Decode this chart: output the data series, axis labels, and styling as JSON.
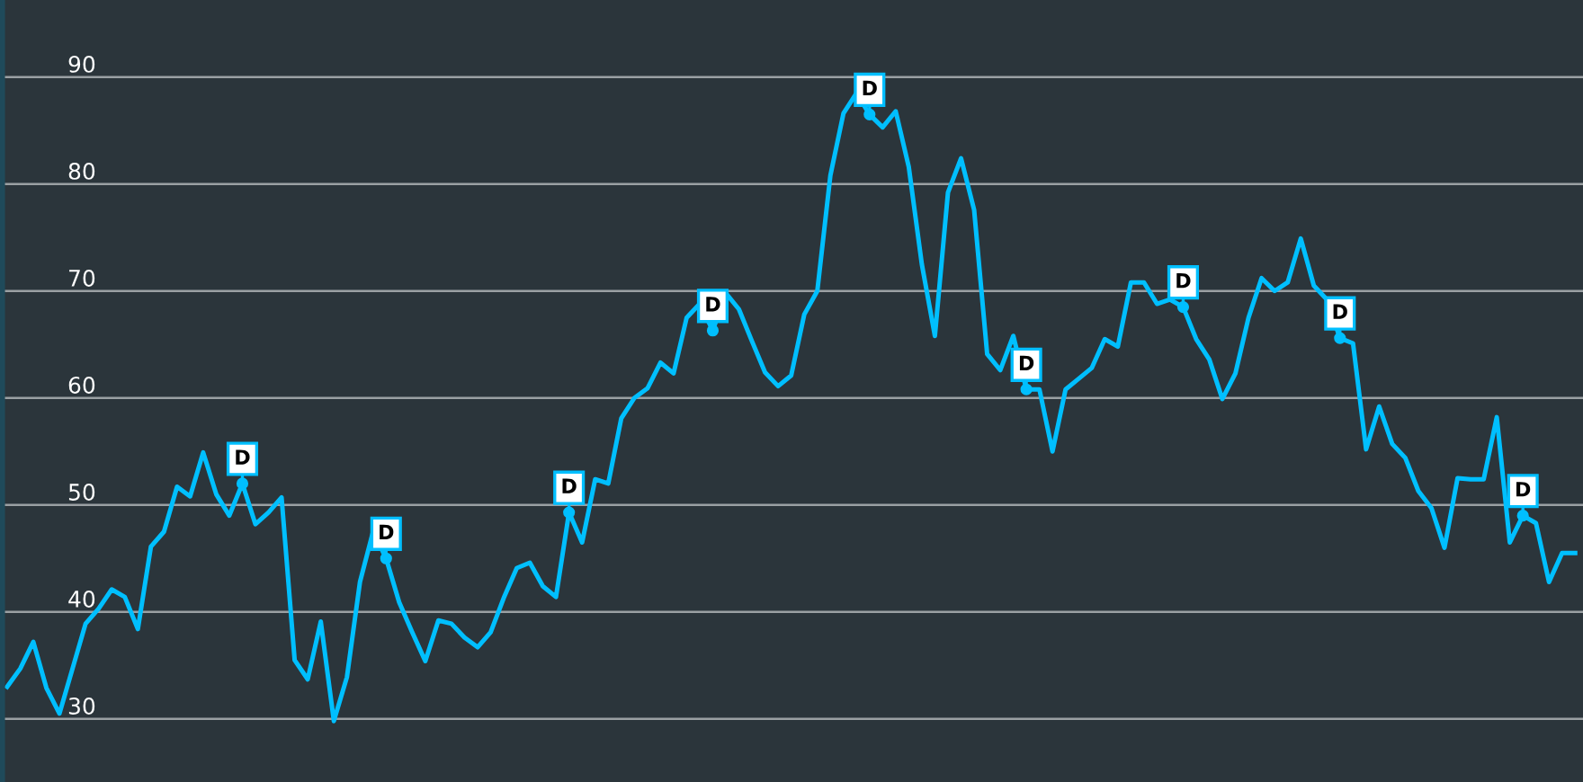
{
  "chart_data": {
    "type": "line",
    "categories": [
      null,
      null,
      null,
      null,
      null,
      null,
      null,
      null,
      null,
      null,
      null,
      null,
      null,
      null,
      null,
      null,
      null,
      null,
      null,
      null,
      null,
      null,
      null,
      null,
      null,
      null,
      null,
      null,
      null,
      null,
      null,
      null,
      null,
      null,
      null,
      null,
      null,
      null,
      null,
      null,
      null,
      null,
      null,
      null,
      null,
      null,
      null,
      null,
      null,
      null,
      null,
      null,
      null,
      null,
      null,
      null,
      null,
      null,
      null,
      null,
      null,
      null,
      null,
      null,
      null,
      null,
      null,
      null,
      null,
      null,
      null,
      null,
      null,
      null,
      null,
      null,
      null,
      null,
      null,
      null,
      null,
      null,
      null,
      null,
      null,
      null,
      null,
      null,
      null,
      null,
      null,
      null,
      null,
      null,
      null,
      null,
      null,
      null,
      null,
      null,
      null,
      null,
      null,
      null,
      null,
      null,
      null,
      null,
      null,
      null,
      null,
      null,
      null,
      null,
      null,
      null,
      null,
      null,
      null,
      null,
      null
    ],
    "series": [
      {
        "color": "#00bfff",
        "values": [
          33.0,
          34.7,
          37.2,
          32.9,
          30.5,
          34.7,
          38.9,
          40.3,
          42.1,
          41.4,
          38.4,
          46.1,
          47.5,
          51.7,
          50.8,
          54.9,
          51.0,
          49.0,
          52.0,
          48.2,
          49.3,
          50.7,
          35.5,
          33.7,
          39.1,
          29.8,
          33.9,
          42.8,
          47.5,
          45.0,
          40.9,
          38.1,
          35.4,
          39.2,
          38.9,
          37.6,
          36.7,
          38.1,
          41.3,
          44.1,
          44.6,
          42.4,
          41.4,
          49.3,
          46.5,
          52.4,
          52.0,
          58.1,
          60.0,
          60.9,
          63.3,
          62.3,
          67.5,
          68.8,
          66.3,
          69.8,
          68.3,
          65.3,
          62.4,
          61.1,
          62.1,
          67.8,
          70.0,
          80.8,
          86.6,
          88.5,
          86.5,
          85.3,
          86.8,
          81.6,
          72.5,
          65.8,
          79.2,
          82.4,
          77.6,
          64.1,
          62.6,
          65.8,
          60.8,
          60.8,
          55.0,
          60.8,
          61.8,
          62.8,
          65.5,
          64.8,
          70.8,
          70.8,
          68.8,
          69.2,
          68.5,
          65.5,
          63.6,
          59.9,
          62.3,
          67.5,
          71.2,
          70.0,
          70.8,
          74.9,
          70.5,
          69.2,
          65.6,
          65.1,
          55.2,
          59.2,
          55.7,
          54.4,
          51.3,
          49.7,
          46.0,
          52.5,
          52.4,
          52.4,
          58.2,
          46.5,
          49.0,
          48.3,
          42.8,
          45.5,
          45.5
        ]
      },
      {
        "type": "scatter",
        "color": "#00bfff",
        "marker": "circle",
        "values": [
          null,
          null,
          null,
          null,
          null,
          null,
          null,
          null,
          null,
          null,
          null,
          null,
          null,
          null,
          null,
          null,
          null,
          null,
          52.0,
          null,
          null,
          null,
          null,
          null,
          null,
          null,
          null,
          null,
          null,
          45.0,
          null,
          null,
          null,
          null,
          null,
          null,
          null,
          null,
          null,
          null,
          null,
          null,
          null,
          49.3,
          null,
          null,
          null,
          null,
          null,
          null,
          null,
          null,
          null,
          null,
          66.3,
          null,
          null,
          null,
          null,
          null,
          null,
          null,
          null,
          null,
          null,
          null,
          86.5,
          null,
          null,
          null,
          null,
          null,
          null,
          null,
          null,
          null,
          null,
          null,
          60.8,
          null,
          null,
          null,
          null,
          null,
          null,
          null,
          null,
          null,
          null,
          null,
          68.5,
          null,
          null,
          null,
          null,
          null,
          null,
          null,
          null,
          null,
          null,
          null,
          65.6,
          null,
          null,
          null,
          null,
          null,
          null,
          null,
          null,
          null,
          null,
          null,
          null,
          null,
          49.0,
          null,
          null,
          null,
          null
        ],
        "value_labels": [
          null,
          null,
          null,
          null,
          null,
          null,
          null,
          null,
          null,
          null,
          null,
          null,
          null,
          null,
          null,
          null,
          null,
          null,
          "D",
          null,
          null,
          null,
          null,
          null,
          null,
          null,
          null,
          null,
          null,
          "D",
          null,
          null,
          null,
          null,
          null,
          null,
          null,
          null,
          null,
          null,
          null,
          null,
          null,
          "D",
          null,
          null,
          null,
          null,
          null,
          null,
          null,
          null,
          null,
          null,
          "D",
          null,
          null,
          null,
          null,
          null,
          null,
          null,
          null,
          null,
          null,
          null,
          "D",
          null,
          null,
          null,
          null,
          null,
          null,
          null,
          null,
          null,
          null,
          null,
          "D",
          null,
          null,
          null,
          null,
          null,
          null,
          null,
          null,
          null,
          null,
          null,
          "D",
          null,
          null,
          null,
          null,
          null,
          null,
          null,
          null,
          null,
          null,
          null,
          "D",
          null,
          null,
          null,
          null,
          null,
          null,
          null,
          null,
          null,
          null,
          null,
          null,
          null,
          "D",
          null,
          null,
          null,
          null
        ]
      }
    ],
    "ylim": [
      24.1,
      97.2
    ],
    "yticks": [
      30,
      40,
      50,
      60,
      70,
      80,
      90
    ],
    "grid": "y",
    "tick_labels": "y"
  }
}
